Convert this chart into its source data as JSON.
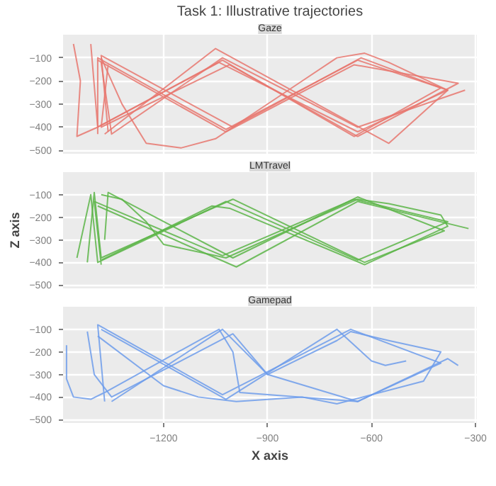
{
  "chart_data": [
    {
      "type": "line",
      "title": "Task 1: Illustrative trajectories",
      "subtitle": "Gaze",
      "xlim": [
        -1490,
        -296
      ],
      "ylim": [
        -515,
        0
      ],
      "xticks": [
        -1200,
        -900,
        -600,
        -300
      ],
      "yticks": [
        -500,
        -400,
        -300,
        -200,
        -100
      ],
      "grid": true,
      "tick_labels": "y",
      "series": [
        {
          "color": "#e8776e",
          "x": [
            -1460,
            -1440,
            -1450,
            -1390,
            -1040,
            -640,
            -380,
            -640,
            -1020,
            -1390,
            -1390
          ],
          "values": [
            -40,
            -200,
            -440,
            -400,
            -120,
            -420,
            -240,
            -110,
            -410,
            -100,
            -430
          ]
        },
        {
          "color": "#e8776e",
          "x": [
            -1410,
            -1390,
            -1030,
            -650,
            -400,
            -630,
            -1000,
            -1380,
            -1360
          ],
          "values": [
            -40,
            -400,
            -110,
            -440,
            -230,
            -100,
            -400,
            -90,
            -420
          ]
        },
        {
          "color": "#e8776e",
          "x": [
            -1380,
            -1320,
            -1250,
            -1150,
            -1050,
            -1000,
            -800,
            -700,
            -620,
            -550,
            -380,
            -550,
            -1050,
            -1370
          ],
          "values": [
            -100,
            -300,
            -470,
            -490,
            -450,
            -400,
            -200,
            -100,
            -80,
            -120,
            -240,
            -470,
            -60,
            -430
          ]
        },
        {
          "color": "#e8776e",
          "x": [
            -1390,
            -1020,
            -650,
            -350,
            -640,
            -1010,
            -1380,
            -1360
          ],
          "values": [
            -110,
            -420,
            -130,
            -210,
            -440,
            -130,
            -400,
            -130
          ]
        },
        {
          "color": "#e8776e",
          "x": [
            -1380,
            -1350,
            -1030,
            -640,
            -330
          ],
          "values": [
            -120,
            -430,
            -100,
            -400,
            -240
          ]
        }
      ]
    },
    {
      "type": "line",
      "subtitle": "LMTravel",
      "ylabel": "Z axis",
      "xlim": [
        -1490,
        -296
      ],
      "ylim": [
        -515,
        0
      ],
      "xticks": [
        -1200,
        -900,
        -600,
        -300
      ],
      "yticks": [
        -500,
        -400,
        -300,
        -200,
        -100
      ],
      "grid": true,
      "tick_labels": "y",
      "series": [
        {
          "color": "#5cb548",
          "x": [
            -1450,
            -1410,
            -1390,
            -1020,
            -640,
            -380,
            -650,
            -1030,
            -1400,
            -1380
          ],
          "values": [
            -380,
            -100,
            -400,
            -130,
            -390,
            -220,
            -120,
            -370,
            -130,
            -410
          ]
        },
        {
          "color": "#5cb548",
          "x": [
            -1420,
            -1400,
            -1380,
            -1000,
            -620,
            -390,
            -640,
            -1000,
            -1360,
            -1370
          ],
          "values": [
            -400,
            -90,
            -380,
            -120,
            -400,
            -260,
            -110,
            -380,
            -90,
            -300
          ]
        },
        {
          "color": "#5cb548",
          "x": [
            -1380,
            -1320,
            -1250,
            -1200,
            -1020,
            -640,
            -550,
            -400,
            -380,
            -620,
            -1010,
            -1060,
            -1380
          ],
          "values": [
            -100,
            -120,
            -220,
            -320,
            -380,
            -120,
            -140,
            -190,
            -240,
            -410,
            -160,
            -150,
            -390
          ]
        },
        {
          "color": "#5cb548",
          "x": [
            -1390,
            -990,
            -640,
            -320
          ],
          "values": [
            -150,
            -420,
            -130,
            -250
          ]
        }
      ]
    },
    {
      "type": "line",
      "subtitle": "Gamepad",
      "xlabel": "X axis",
      "xlim": [
        -1490,
        -296
      ],
      "ylim": [
        -515,
        0
      ],
      "xticks": [
        -1200,
        -900,
        -600,
        -300
      ],
      "yticks": [
        -500,
        -400,
        -300,
        -200,
        -100
      ],
      "grid": true,
      "series": [
        {
          "color": "#6d9ceb",
          "x": [
            -1480,
            -1480,
            -1460,
            -1410,
            -1370,
            -1040,
            -1000,
            -980,
            -640,
            -400,
            -660,
            -1030,
            -1390,
            -1370
          ],
          "values": [
            -170,
            -320,
            -400,
            -410,
            -380,
            -100,
            -200,
            -380,
            -420,
            -250,
            -100,
            -390,
            -80,
            -420
          ]
        },
        {
          "color": "#6d9ceb",
          "x": [
            -1420,
            -1400,
            -1350,
            -1000,
            -900,
            -640,
            -380,
            -350
          ],
          "values": [
            -110,
            -300,
            -400,
            -120,
            -300,
            -420,
            -230,
            -260
          ]
        },
        {
          "color": "#6d9ceb",
          "x": [
            -1390,
            -1200,
            -1100,
            -990,
            -800,
            -700,
            -450,
            -400,
            -550,
            -660,
            -700,
            -900,
            -1030,
            -1350
          ],
          "values": [
            -130,
            -350,
            -400,
            -420,
            -400,
            -430,
            -330,
            -200,
            -150,
            -110,
            -150,
            -300,
            -100,
            -420
          ]
        },
        {
          "color": "#6d9ceb",
          "x": [
            -1380,
            -1020,
            -700,
            -600,
            -560,
            -500
          ],
          "values": [
            -100,
            -410,
            -100,
            -240,
            -260,
            -240
          ]
        }
      ]
    }
  ]
}
